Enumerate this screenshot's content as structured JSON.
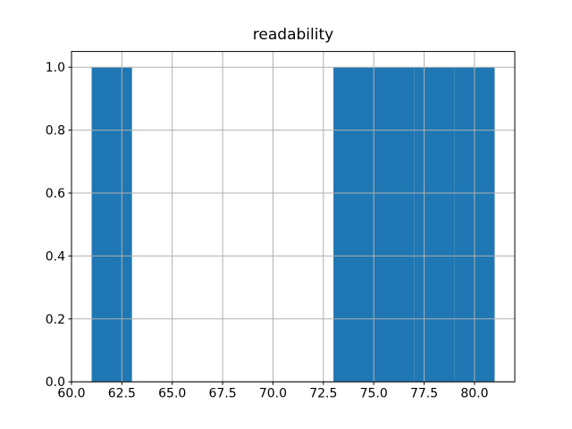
{
  "chart_data": {
    "type": "histogram",
    "title": "readability",
    "xlabel": "",
    "ylabel": "",
    "bin_edges": [
      61,
      63,
      65,
      67,
      69,
      71,
      73,
      75,
      77,
      79,
      81
    ],
    "counts": [
      1,
      0,
      0,
      0,
      0,
      0,
      1,
      1,
      1,
      1
    ],
    "xlim": [
      60,
      82
    ],
    "ylim": [
      0,
      1.05
    ],
    "xticks": [
      60.0,
      62.5,
      65.0,
      67.5,
      70.0,
      72.5,
      75.0,
      77.5,
      80.0
    ],
    "xtick_labels": [
      "60.0",
      "62.5",
      "65.0",
      "67.5",
      "70.0",
      "72.5",
      "75.0",
      "77.5",
      "80.0"
    ],
    "yticks": [
      0.0,
      0.2,
      0.4,
      0.6,
      0.8,
      1.0
    ],
    "ytick_labels": [
      "0.0",
      "0.2",
      "0.4",
      "0.6",
      "0.8",
      "1.0"
    ],
    "grid": true,
    "grid_over_bars": true,
    "legend": "none",
    "bar_color": "#1f77b4",
    "grid_color": "#b0b0b0",
    "spine_color": "#000000",
    "background_color": "#ffffff"
  }
}
